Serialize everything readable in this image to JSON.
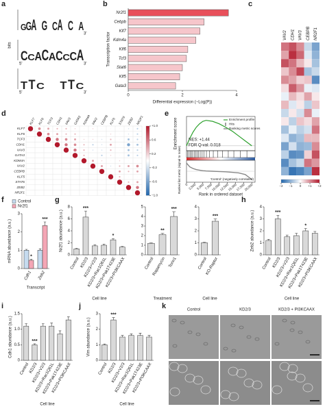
{
  "chart_data": [
    {
      "type": "logo",
      "panel": "a",
      "ylabel": "bits",
      "five": "5'",
      "three": "3'",
      "motifs": [
        [
          "G",
          "G",
          "A",
          null,
          "G",
          null,
          "C",
          "A",
          null,
          "C",
          null,
          "A"
        ],
        [
          "C",
          "C",
          "A",
          "C",
          "A",
          "C",
          "C",
          "C",
          "A"
        ],
        [
          "T",
          "T",
          "C",
          null,
          null,
          "T",
          "T",
          "C"
        ]
      ]
    },
    {
      "type": "hbar",
      "panel": "b",
      "categories": [
        "Nr2f1",
        "Cebpb",
        "Klf7",
        "Kdm4a",
        "Klf6",
        "Tcf3",
        "Stat6",
        "Klf5",
        "Gata3"
      ],
      "values": [
        3.7,
        2.8,
        2.65,
        2.5,
        2.2,
        2.15,
        2.0,
        1.9,
        1.75
      ],
      "colors": [
        "#e8505b",
        "#f6c6cb",
        "#f6c6cb",
        "#f6c6cb",
        "#f6c6cb",
        "#f6c6cb",
        "#f6c6cb",
        "#f6c6cb",
        "#f6c6cb"
      ],
      "xlim": [
        0,
        4
      ],
      "xticks": [
        0,
        2,
        4
      ],
      "xlabel": "Differential expression (−Log(P))",
      "ylabel": "Transcription factor"
    },
    {
      "type": "heatmap",
      "panel": "c",
      "columns": [
        "VAV2",
        "CDH1",
        "VAV3",
        "CEBPB",
        "NR2F1"
      ],
      "rows": [
        null,
        null,
        null,
        null,
        null,
        null,
        null,
        null,
        null,
        null,
        null,
        null,
        null,
        null,
        null,
        null
      ],
      "values": [
        [
          1.2,
          1.5,
          1.0,
          -0.5,
          -1.2
        ],
        [
          0.8,
          1.8,
          1.3,
          -0.3,
          -1.0
        ],
        [
          1.5,
          1.2,
          0.6,
          0.2,
          -0.8
        ],
        [
          0.5,
          1.0,
          1.6,
          -0.8,
          -0.5
        ],
        [
          1.0,
          0.8,
          0.4,
          0.5,
          -1.5
        ],
        [
          0.3,
          1.4,
          0.9,
          -0.2,
          -0.3
        ],
        [
          -0.2,
          0.6,
          0.3,
          0.8,
          0.2
        ],
        [
          0.6,
          -0.3,
          0.2,
          -0.6,
          0.5
        ],
        [
          -0.5,
          0.2,
          -0.4,
          1.0,
          -0.2
        ],
        [
          0.2,
          -0.6,
          0.5,
          0.3,
          0.8
        ],
        [
          -0.8,
          -0.2,
          -0.6,
          -0.4,
          1.2
        ],
        [
          -0.3,
          -1.0,
          -0.8,
          0.6,
          0.6
        ],
        [
          -1.2,
          -0.4,
          -1.0,
          -0.9,
          1.0
        ],
        [
          -0.6,
          -1.5,
          -1.4,
          0.4,
          1.5
        ],
        [
          -1.5,
          -0.8,
          -0.5,
          1.2,
          0.9
        ],
        [
          -1.0,
          -1.8,
          -1.6,
          -1.2,
          1.8
        ]
      ],
      "clim": [
        -2,
        2
      ],
      "cticks": [
        {
          "value": -2,
          "label": "−2"
        },
        {
          "value": -1,
          "label": "−1"
        },
        0,
        {
          "value": 1,
          "label": "+1"
        },
        {
          "value": 2,
          "label": "+2"
        }
      ]
    },
    {
      "type": "correlation",
      "panel": "d",
      "labels": [
        "KLF7",
        "KLF6",
        "TCF3",
        "CDH1",
        "VAV3",
        "GATA3",
        "KDM4A",
        "VAV2",
        "CEBPB",
        "KLF5",
        "STAT6",
        "ZEB2",
        "NR2F1"
      ],
      "values": [
        [
          1,
          0.5,
          0.4,
          0.3,
          0.3,
          0.2,
          0.1,
          0.2,
          -0.1,
          0.1,
          0.1,
          -0.2,
          -0.3
        ],
        [
          1,
          0.5,
          0.4,
          0.3,
          0.3,
          0.1,
          0.1,
          -0.1,
          0.2,
          0.1,
          -0.2,
          -0.3
        ],
        [
          1,
          0.6,
          0.5,
          0.4,
          0.2,
          0.2,
          -0.2,
          0.3,
          0.1,
          -0.4,
          -0.3
        ],
        [
          1,
          0.6,
          0.5,
          0.3,
          -0.3,
          -0.2,
          0.4,
          0.1,
          -0.6,
          -0.4
        ],
        [
          1,
          0.6,
          0.3,
          -0.2,
          -0.2,
          0.3,
          0.1,
          -0.4,
          -0.3
        ],
        [
          1,
          0.3,
          -0.1,
          -0.3,
          0.2,
          0.1,
          -0.4,
          -0.3
        ],
        [
          1,
          0.4,
          0.2,
          0.1,
          0.2,
          -0.1,
          0.1
        ],
        [
          1,
          0.4,
          -0.2,
          0.3,
          0.4,
          0.5
        ],
        [
          1,
          0.1,
          0.4,
          0.3,
          0.4
        ],
        [
          1,
          0.3,
          -0.1,
          -0.1
        ],
        [
          1,
          0.3,
          0.4
        ],
        [
          1,
          0.6
        ],
        [
          1
        ]
      ],
      "clim": [
        -1,
        1
      ],
      "cticks": [
        {
          "value": 1,
          "label": "+1.0"
        },
        0.6,
        0.2,
        -0.2,
        -0.6,
        {
          "value": -1,
          "label": "−1.0"
        }
      ]
    },
    {
      "type": "gsea",
      "panel": "e",
      "ylabel": "Enrichment score",
      "ylabel2": "Ranked list metric (signal to noise)",
      "xlabel": "Rank in ordered dataset",
      "x": [
        0,
        1000,
        2000,
        3000,
        4000,
        5000,
        6000,
        8000,
        10000,
        12000,
        14000,
        16000,
        18000,
        20000
      ],
      "y": [
        0,
        0.15,
        0.28,
        0.38,
        0.45,
        0.5,
        0.52,
        0.5,
        0.45,
        0.38,
        0.3,
        0.2,
        0.1,
        0
      ],
      "metric": [
        1.5,
        0.8,
        0.5,
        0.3,
        0.2,
        0.1,
        0.05,
        0,
        -0.05,
        -0.1,
        -0.2,
        -0.3,
        -0.6,
        -1.5
      ],
      "ylim": [
        -0.1,
        0.6
      ],
      "ylim2": [
        -2,
        2
      ],
      "xlim": [
        0,
        21000
      ],
      "xticks": [
        0,
        {
          "value": 2500,
          "label": "2,500"
        },
        {
          "value": 5000,
          "label": "5,000"
        },
        {
          "value": 7500,
          "label": "7,500"
        },
        {
          "value": 10000,
          "label": "10,000"
        },
        {
          "value": 12500,
          "label": "12,500"
        },
        {
          "value": 15000,
          "label": "15,000"
        },
        {
          "value": 17500,
          "label": "17,500"
        },
        {
          "value": 20000,
          "label": "20,000"
        }
      ],
      "hits": [
        300,
        700,
        1100,
        1500,
        1900,
        2400,
        2800,
        3300,
        3700,
        4200,
        4800,
        5400,
        6100,
        7000,
        8200,
        9500,
        11000,
        12800,
        14500,
        16500,
        18500
      ],
      "legend": [
        "Enrichment profile",
        "Ranking metric scores"
      ],
      "hits_label": "Hits",
      "annotations": [
        "NES: +1.44",
        "FDR Q-val: 0.018"
      ],
      "neg_label": "'Control' (negatively correlated)"
    },
    {
      "type": "grouped-bar",
      "panel": "f",
      "categories": [
        "Cdh1",
        "Zeb2"
      ],
      "series": [
        {
          "name": "Control",
          "color": "#c6dbef",
          "values": [
            1,
            1
          ],
          "errors": [
            0.05,
            0.08
          ],
          "sig": [
            null,
            null
          ]
        },
        {
          "name": "Nr2f1",
          "color": "#f4a6b5",
          "values": [
            0.45,
            2.35
          ],
          "errors": [
            0.05,
            0.2
          ],
          "sig": [
            "*",
            "***"
          ]
        }
      ],
      "ylim": [
        0,
        3
      ],
      "yticks": [
        0,
        1,
        2,
        3
      ],
      "ylabel": "mRNA abundance (a.u.)",
      "xlabel": "Transcript"
    },
    {
      "type": "bar-panels",
      "panel": "g",
      "ylabel": "Nr2f1 abundance (a.u.)",
      "color": "#d9d9d9",
      "panels": [
        {
          "categories": [
            "Control",
            "KD2/3",
            "KD2/3+V2/3",
            "KD2/3+Rac1Q61L",
            "KD2/3+Pak1T423E",
            "KD2/3+PI3KCAAX"
          ],
          "values": [
            1,
            6.3,
            1.5,
            1.6,
            2.5,
            1.3
          ],
          "errors": [
            0.1,
            1.0,
            0.2,
            0.2,
            0.2,
            0.1
          ],
          "sig": [
            null,
            "***",
            null,
            null,
            "*",
            null
          ],
          "ylim": [
            0,
            8
          ],
          "yticks": [
            0,
            2,
            4,
            6,
            8
          ],
          "xlabel": "Cell line"
        },
        {
          "categories": [
            "Control",
            "Rapamycin",
            "Torin1"
          ],
          "values": [
            1.2,
            2.1,
            4.0
          ],
          "errors": [
            0.05,
            0.15,
            0.5
          ],
          "sig": [
            null,
            "**",
            "***"
          ],
          "ylim": [
            0,
            5
          ],
          "yticks": [
            0,
            1,
            2,
            3,
            4,
            5
          ],
          "xlabel": "Treatment"
        },
        {
          "categories": [
            "Control",
            "KO-Raptor"
          ],
          "values": [
            1,
            2.8
          ],
          "errors": [
            0.05,
            0.2
          ],
          "sig": [
            null,
            "***"
          ],
          "ylim": [
            0,
            4
          ],
          "yticks": [
            0,
            1,
            2,
            3,
            4
          ],
          "xlabel": "Cell line"
        }
      ]
    },
    {
      "type": "bar",
      "panel": "h",
      "color": "#d9d9d9",
      "categories": [
        "Control",
        "KD2/3",
        "KD2/3+V2/3",
        "KD2/3+Rac1Q61L",
        "KD2/3+Pak1T423E",
        "KD2/3+PI3KCAAX"
      ],
      "values": [
        1.2,
        3.0,
        1.5,
        1.6,
        2.0,
        1.8
      ],
      "errors": [
        0.1,
        0.3,
        0.15,
        0.2,
        0.2,
        0.15
      ],
      "sig": [
        null,
        "***",
        null,
        null,
        "*",
        null
      ],
      "ylim": [
        0,
        4
      ],
      "yticks": [
        0,
        1,
        2,
        3,
        4
      ],
      "ylabel": "Zeb2 abundance (a.u.)",
      "xlabel": "Cell line"
    },
    {
      "type": "bar",
      "panel": "i",
      "color": "#d9d9d9",
      "categories": [
        "Control",
        "KD2/3",
        "KD2/3+V2/3",
        "KD2/3+Rac1Q61L",
        "KD2/3+Pak1T423E",
        "KD2/3+PI3KCAAX"
      ],
      "values": [
        1.1,
        0.5,
        1.1,
        1.1,
        0.85,
        1.3
      ],
      "errors": [
        0.08,
        0.03,
        0.08,
        0.1,
        0.1,
        0.1
      ],
      "sig": [
        null,
        "***",
        null,
        null,
        null,
        null
      ],
      "ylim": [
        0,
        1.5
      ],
      "yticks": [
        0,
        0.5,
        {
          "value": 1,
          "label": "1.0"
        },
        1.5
      ],
      "ylabel": "Cdh1 abundance (a.u.)",
      "xlabel": "Cell line"
    },
    {
      "type": "bar",
      "panel": "j",
      "color": "#d9d9d9",
      "categories": [
        "Control",
        "KD2/3",
        "KD2/3+V2/3",
        "KD2/3+Rac1Q61L",
        "KD2/3+Pak1T423E",
        "KD2/3+PI3KCAAX"
      ],
      "values": [
        1.0,
        2.6,
        1.5,
        1.6,
        1.6,
        1.5
      ],
      "errors": [
        0.05,
        0.15,
        0.1,
        0.1,
        0.15,
        0.1
      ],
      "sig": [
        null,
        "***",
        null,
        null,
        null,
        null
      ],
      "ylim": [
        0,
        3
      ],
      "yticks": [
        0,
        1,
        2,
        3
      ],
      "ylabel": "Vim abundance (a.u.)",
      "xlabel": "Cell line"
    },
    {
      "type": "images",
      "panel": "k",
      "labels": [
        "Control",
        "KD2/3",
        "KD2/3 + PI3KCAAX"
      ]
    }
  ]
}
